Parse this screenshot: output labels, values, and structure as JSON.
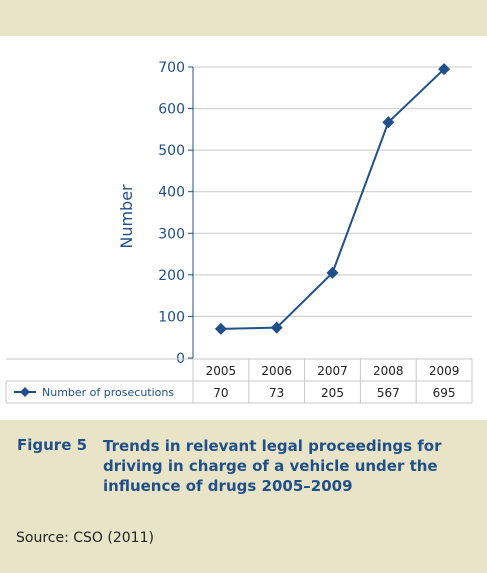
{
  "chart_data": {
    "type": "line",
    "ylabel": "Number",
    "ylim": [
      0,
      700
    ],
    "yticks": [
      0,
      100,
      200,
      300,
      400,
      500,
      600,
      700
    ],
    "categories": [
      "2005",
      "2006",
      "2007",
      "2008",
      "2009"
    ],
    "series": [
      {
        "name": "Number of prosecutions",
        "values": [
          70,
          73,
          205,
          567,
          695
        ]
      }
    ],
    "grid": true,
    "legend": "data table below plot",
    "colors": {
      "line": "#1f5089",
      "grid": "#c9c9c9",
      "axis": "#1f5089"
    }
  },
  "caption": {
    "label": "Figure 5",
    "title": "Trends in relevant legal proceedings for driving in charge of a vehicle under the influence of drugs 2005–2009",
    "source": "Source: CSO (2011)"
  },
  "colors": {
    "band": "#e9e3c7",
    "accent": "#1f5089"
  }
}
